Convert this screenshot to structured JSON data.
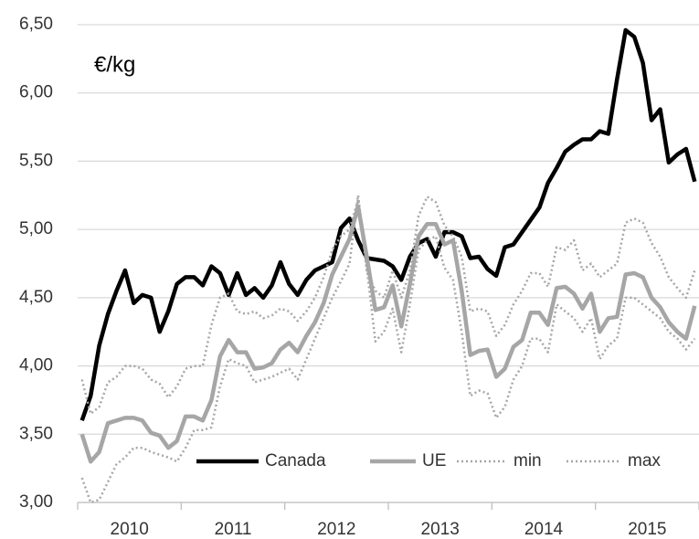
{
  "chart_data": {
    "type": "line",
    "annotation": "€/kg",
    "categories": [
      null,
      null,
      null,
      null,
      null,
      null,
      "2010",
      null,
      null,
      null,
      null,
      null,
      null,
      null,
      null,
      null,
      null,
      null,
      "2011",
      null,
      null,
      null,
      null,
      null,
      null,
      null,
      null,
      null,
      null,
      null,
      "2012",
      null,
      null,
      null,
      null,
      null,
      null,
      null,
      null,
      null,
      null,
      null,
      "2013",
      null,
      null,
      null,
      null,
      null,
      null,
      null,
      null,
      null,
      null,
      null,
      "2014",
      null,
      null,
      null,
      null,
      null,
      null,
      null,
      null,
      null,
      null,
      null,
      "2015",
      null,
      null,
      null,
      null,
      null
    ],
    "series": [
      {
        "name": "Canada",
        "color": "#000000",
        "line_style": "solid",
        "values": [
          3.6,
          3.78,
          4.15,
          4.38,
          4.55,
          4.7,
          4.46,
          4.52,
          4.5,
          4.25,
          4.4,
          4.6,
          4.65,
          4.65,
          4.59,
          4.73,
          4.68,
          4.52,
          4.68,
          4.52,
          4.57,
          4.5,
          4.59,
          4.76,
          4.6,
          4.52,
          4.63,
          4.7,
          4.73,
          4.76,
          5.01,
          5.08,
          4.92,
          4.79,
          4.78,
          4.77,
          4.73,
          4.63,
          4.8,
          4.9,
          4.93,
          4.8,
          4.98,
          4.98,
          4.95,
          4.79,
          4.8,
          4.71,
          4.66,
          4.87,
          4.89,
          4.98,
          5.07,
          5.16,
          5.34,
          5.45,
          5.57,
          5.62,
          5.66,
          5.66,
          5.72,
          5.7,
          6.1,
          6.46,
          6.41,
          6.22,
          5.8,
          5.88,
          5.49,
          5.55,
          5.59,
          5.35
        ]
      },
      {
        "name": "UE",
        "color": "#a6a6a6",
        "line_style": "solid",
        "values": [
          3.5,
          3.3,
          3.37,
          3.58,
          3.6,
          3.62,
          3.62,
          3.6,
          3.51,
          3.49,
          3.4,
          3.45,
          3.63,
          3.63,
          3.6,
          3.75,
          4.07,
          4.19,
          4.1,
          4.1,
          3.98,
          3.99,
          4.02,
          4.12,
          4.17,
          4.1,
          4.22,
          4.32,
          4.46,
          4.67,
          4.8,
          4.93,
          5.17,
          4.8,
          4.41,
          4.43,
          4.59,
          4.29,
          4.6,
          4.95,
          5.04,
          5.04,
          4.89,
          4.92,
          4.55,
          4.08,
          4.11,
          4.12,
          3.92,
          3.98,
          4.14,
          4.19,
          4.39,
          4.39,
          4.3,
          4.57,
          4.58,
          4.53,
          4.42,
          4.53,
          4.25,
          4.35,
          4.36,
          4.67,
          4.68,
          4.65,
          4.5,
          4.43,
          4.32,
          4.25,
          4.2,
          4.44
        ]
      },
      {
        "name": "min",
        "color": "#a6a6a6",
        "line_style": "dotted",
        "values": [
          3.18,
          3.0,
          3.02,
          3.15,
          3.28,
          3.33,
          3.4,
          3.4,
          3.37,
          3.35,
          3.33,
          3.3,
          3.4,
          3.53,
          3.53,
          3.55,
          3.85,
          4.05,
          4.02,
          4.0,
          3.88,
          3.9,
          3.92,
          3.95,
          3.98,
          3.9,
          4.05,
          4.2,
          4.35,
          4.5,
          4.62,
          4.75,
          5.25,
          4.72,
          4.18,
          4.25,
          4.42,
          4.1,
          4.45,
          4.85,
          4.92,
          4.95,
          4.72,
          4.63,
          4.25,
          3.78,
          3.82,
          3.8,
          3.62,
          3.7,
          3.9,
          4.0,
          4.2,
          4.2,
          4.1,
          4.45,
          4.4,
          4.35,
          4.25,
          4.35,
          4.05,
          4.15,
          4.2,
          4.5,
          4.5,
          4.45,
          4.4,
          4.35,
          4.25,
          4.2,
          4.12,
          4.2
        ]
      },
      {
        "name": "max",
        "color": "#a6a6a6",
        "line_style": "dotted",
        "values": [
          3.9,
          3.65,
          3.7,
          3.88,
          3.92,
          4.0,
          4.0,
          3.98,
          3.9,
          3.87,
          3.77,
          3.85,
          3.98,
          4.0,
          4.0,
          4.3,
          4.5,
          4.53,
          4.4,
          4.38,
          4.4,
          4.35,
          4.37,
          4.42,
          4.4,
          4.33,
          4.4,
          4.5,
          4.65,
          4.85,
          4.95,
          5.0,
          5.22,
          4.7,
          4.55,
          4.5,
          4.7,
          4.5,
          4.7,
          5.1,
          5.24,
          5.2,
          5.03,
          4.95,
          4.8,
          4.4,
          4.42,
          4.4,
          4.22,
          4.3,
          4.45,
          4.55,
          4.68,
          4.68,
          4.58,
          4.87,
          4.85,
          4.92,
          4.7,
          4.75,
          4.65,
          4.7,
          4.75,
          5.05,
          5.08,
          5.05,
          4.9,
          4.8,
          4.65,
          4.57,
          4.5,
          4.7
        ]
      }
    ],
    "ylim": [
      3,
      6.5
    ],
    "yticks": [
      {
        "value": 3,
        "label": "3,00"
      },
      {
        "value": 3.5,
        "label": "3,50"
      },
      {
        "value": 4,
        "label": "4,00"
      },
      {
        "value": 4.5,
        "label": "4,50"
      },
      {
        "value": 5,
        "label": "5,00"
      },
      {
        "value": 5.5,
        "label": "5,50"
      },
      {
        "value": 6,
        "label": "6,00"
      },
      {
        "value": 6.5,
        "label": "6,50"
      }
    ],
    "grid": true,
    "legend": "bottom"
  }
}
